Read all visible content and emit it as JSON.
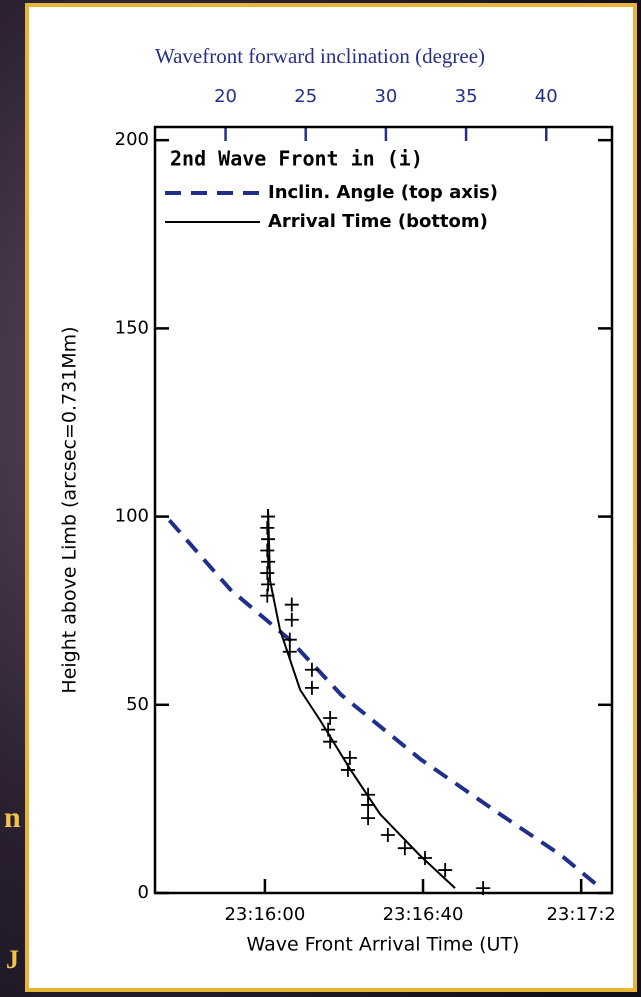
{
  "slide_fragments": [
    "n",
    "J"
  ],
  "chart_data": {
    "type": "line",
    "title": "2nd Wave Front in (i)",
    "x_label": "Wave Front Arrival Time (UT)",
    "x2_label": "Wavefront forward inclination (degree)",
    "y_label": "Height above Limb (arcsec=0.731Mm)",
    "xlim": [
      32.2,
      147.8
    ],
    "xticks": [
      {
        "value": 60,
        "label": "23:16:00"
      },
      {
        "value": 100,
        "label": "23:16:40"
      },
      {
        "value": 140,
        "label": "23:17:2"
      }
    ],
    "x2lim": [
      15.6,
      44.1
    ],
    "x2ticks": [
      20,
      25,
      30,
      35,
      40
    ],
    "ylim": [
      0,
      203.5
    ],
    "yticks": [
      0,
      50,
      100,
      150,
      200
    ],
    "series": [
      {
        "name": "Inclin. Angle (top axis)",
        "color": "#1f2f8a",
        "style": "dashed",
        "axis": "x2",
        "x": [
          16.5,
          20.3,
          24.0,
          27.2,
          32.2,
          37.2,
          40.9,
          43.4
        ],
        "values": [
          99,
          80.6,
          67.3,
          52.7,
          35.4,
          20.7,
          10.1,
          1.3
        ]
      },
      {
        "name": "Arrival Time (bottom)",
        "color": "#000000",
        "style": "solid",
        "x": [
          60.8,
          61.3,
          63.8,
          68.9,
          73.9,
          81.5,
          89.1,
          99.2,
          108.1
        ],
        "values": [
          102,
          83,
          70,
          54,
          46,
          33,
          21,
          10,
          1.3
        ]
      },
      {
        "color": "#000000",
        "style": "plus",
        "x": [
          60.8,
          60.6,
          60.8,
          60.6,
          60.8,
          60.6,
          60.8,
          60.6,
          66.8,
          66.8,
          66.3,
          66.3,
          71.9,
          71.9,
          76.5,
          76.0,
          76.5,
          81.5,
          81.0,
          86.1,
          86.1,
          86.1,
          91.1,
          95.4,
          100.5,
          105.6,
          115.2
        ],
        "values": [
          100,
          97,
          94,
          91,
          88,
          85,
          82,
          79,
          76.6,
          72.6,
          67.3,
          64.1,
          59.3,
          54.5,
          46.5,
          43.4,
          40.2,
          35.9,
          32.7,
          26.1,
          23.4,
          19.9,
          15.4,
          11.9,
          9.3,
          6.1,
          1.3
        ]
      }
    ]
  }
}
